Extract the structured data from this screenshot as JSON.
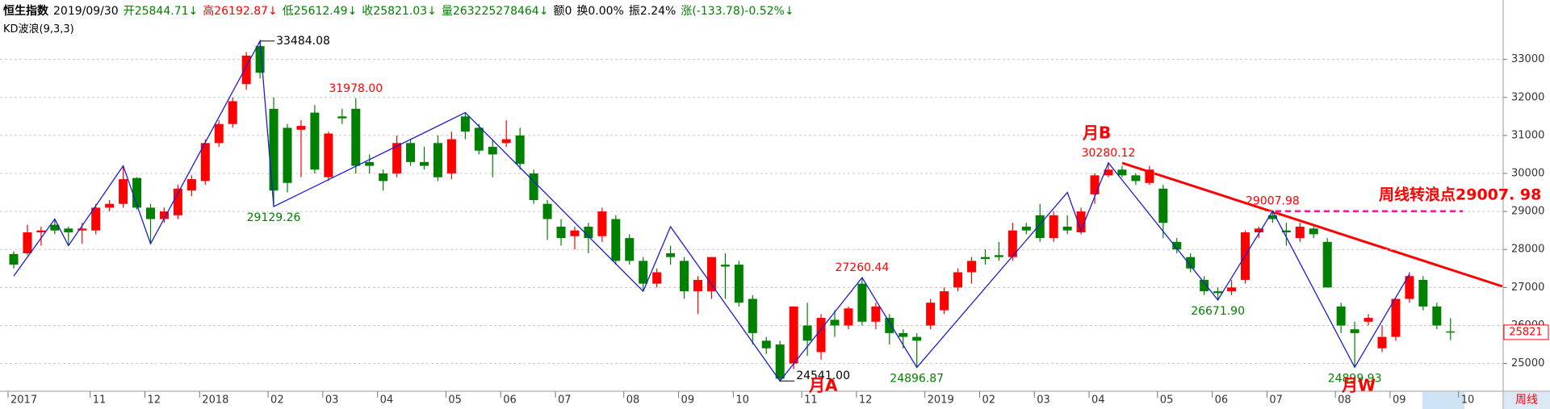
{
  "header": {
    "name": "恒生指数",
    "date": "2019/09/30",
    "items": [
      {
        "text": "开25844.71↓",
        "color": "#008000"
      },
      {
        "text": "高26192.87↓",
        "color": "#ff0000"
      },
      {
        "text": "低25612.49↓",
        "color": "#008000"
      },
      {
        "text": "收25821.03↓",
        "color": "#008000"
      },
      {
        "text": "量263225278464↓",
        "color": "#008000"
      },
      {
        "text": "额0",
        "color": "#000000"
      },
      {
        "text": "换0.00%",
        "color": "#000000"
      },
      {
        "text": "振2.24%",
        "color": "#000000"
      },
      {
        "text": "涨(-133.78)-0.52%↓",
        "color": "#008000"
      }
    ],
    "indicator": "KD波浪(9,3,3)"
  },
  "chart_data": {
    "type": "candlestick",
    "categories": [
      "2017",
      null,
      null,
      null,
      null,
      null,
      "11",
      null,
      null,
      null,
      "12",
      null,
      null,
      null,
      "2018",
      null,
      null,
      null,
      null,
      "02",
      null,
      null,
      null,
      "03",
      null,
      null,
      null,
      "04",
      null,
      null,
      null,
      null,
      "05",
      null,
      null,
      null,
      "06",
      null,
      null,
      null,
      "07",
      null,
      null,
      null,
      null,
      "08",
      null,
      null,
      null,
      "09",
      null,
      null,
      null,
      "10",
      null,
      null,
      null,
      null,
      "11",
      null,
      null,
      null,
      "12",
      null,
      null,
      null,
      null,
      "2019",
      null,
      null,
      null,
      "02",
      null,
      null,
      null,
      "03",
      null,
      null,
      null,
      "04",
      null,
      null,
      null,
      null,
      "05",
      null,
      null,
      null,
      "06",
      null,
      null,
      null,
      "07",
      null,
      null,
      null,
      null,
      "08",
      null,
      null,
      null,
      "09",
      null,
      null,
      null,
      null,
      "10"
    ],
    "open": [
      27880,
      27900,
      28450,
      28650,
      28550,
      28500,
      28500,
      29100,
      29200,
      29880,
      29100,
      28800,
      28900,
      29550,
      29800,
      30800,
      31300,
      32350,
      33350,
      31700,
      31200,
      31150,
      31600,
      29900,
      31500,
      31700,
      30300,
      30000,
      30000,
      30800,
      30300,
      30800,
      30000,
      31500,
      31200,
      30700,
      30800,
      31000,
      30000,
      29200,
      28600,
      28350,
      28600,
      28350,
      28800,
      28300,
      27700,
      27100,
      27900,
      27700,
      26900,
      26900,
      27600,
      27600,
      26700,
      25600,
      25500,
      25000,
      26000,
      25300,
      26150,
      26000,
      27100,
      26100,
      26200,
      25800,
      25700,
      26000,
      26400,
      27000,
      27400,
      27800,
      27850,
      27800,
      28600,
      28900,
      28300,
      28600,
      28450,
      29450,
      29950,
      30100,
      29950,
      29750,
      29600,
      28200,
      27800,
      27200,
      26900,
      26900,
      27200,
      28450,
      28900,
      28500,
      28300,
      28550,
      28200,
      26500,
      25900,
      26100,
      25400,
      25700,
      26700,
      27200,
      26500,
      25844.71,
      null
    ],
    "high": [
      27950,
      28650,
      28600,
      28800,
      28600,
      28700,
      29200,
      29300,
      30200,
      29900,
      29200,
      29100,
      29700,
      29950,
      30900,
      31400,
      32000,
      33200,
      33484.08,
      32000,
      31300,
      31400,
      31800,
      31100,
      31700,
      31978,
      30500,
      30100,
      31000,
      30900,
      30700,
      31000,
      31100,
      31600,
      31300,
      30900,
      31400,
      31200,
      30100,
      29300,
      28800,
      28600,
      28700,
      29100,
      28900,
      28400,
      27800,
      27500,
      28100,
      27800,
      27300,
      27800,
      27900,
      27700,
      26800,
      25700,
      25600,
      26500,
      26600,
      26300,
      26400,
      26500,
      27260.44,
      26600,
      26300,
      25900,
      25800,
      26700,
      27000,
      27500,
      27800,
      28000,
      28200,
      28700,
      28700,
      29200,
      29000,
      28900,
      29100,
      30000,
      30280.12,
      30200,
      30000,
      30200,
      29700,
      28300,
      27900,
      27300,
      27000,
      27200,
      28500,
      28600,
      29007.98,
      28700,
      28700,
      28600,
      28300,
      26600,
      26100,
      26300,
      26000,
      26700,
      27400,
      27300,
      26600,
      26192.87,
      null
    ],
    "low": [
      27500,
      27850,
      28100,
      28400,
      28100,
      28150,
      28400,
      29000,
      29100,
      29050,
      28150,
      28700,
      28800,
      29400,
      29700,
      30700,
      31200,
      32200,
      32500,
      29129.26,
      29500,
      29900,
      30000,
      29800,
      31300,
      30000,
      30000,
      29550,
      29900,
      30200,
      30100,
      29800,
      29850,
      30900,
      30500,
      29900,
      30700,
      30100,
      29200,
      28250,
      28100,
      28000,
      27900,
      28200,
      27600,
      27600,
      26900,
      27000,
      27600,
      26700,
      26300,
      26700,
      26700,
      26500,
      25500,
      25250,
      24541,
      24850,
      25200,
      25100,
      25700,
      25900,
      26000,
      25900,
      25500,
      25400,
      24896.87,
      25900,
      26300,
      26900,
      27100,
      27600,
      27700,
      27700,
      28400,
      28200,
      28200,
      28400,
      28400,
      29200,
      29900,
      29900,
      29700,
      29700,
      28300,
      27900,
      27400,
      26800,
      26671.9,
      26800,
      27100,
      28300,
      28700,
      28100,
      28200,
      28300,
      27000,
      25800,
      24899.93,
      26000,
      25300,
      25600,
      26600,
      26400,
      25900,
      25612.49,
      null
    ],
    "close": [
      27600,
      28450,
      28500,
      28500,
      28450,
      28550,
      29100,
      29200,
      29850,
      29100,
      28800,
      29000,
      29600,
      29850,
      30800,
      31300,
      31900,
      33100,
      32650,
      29550,
      29750,
      31250,
      30100,
      31050,
      31450,
      30200,
      30200,
      29800,
      30800,
      30300,
      30200,
      29900,
      30900,
      31100,
      30600,
      30500,
      30900,
      30250,
      29300,
      28800,
      28300,
      28500,
      28300,
      29000,
      27700,
      27700,
      27100,
      27400,
      27800,
      26900,
      27200,
      27800,
      27550,
      26600,
      25800,
      25400,
      24600,
      26500,
      25600,
      26200,
      26000,
      26450,
      26100,
      26500,
      25800,
      25700,
      25600,
      26600,
      26900,
      27400,
      27700,
      27750,
      27800,
      28500,
      28500,
      28300,
      28900,
      28500,
      29000,
      29950,
      30100,
      29950,
      29800,
      30100,
      28700,
      28000,
      27500,
      26900,
      26850,
      27000,
      28450,
      28550,
      28800,
      28450,
      28600,
      28400,
      27000,
      26000,
      25800,
      26200,
      25700,
      26700,
      27300,
      26500,
      26000,
      25821.03,
      null
    ],
    "up_color": "#ff0000",
    "down_color": "#008000",
    "wave": {
      "color": "#1c1cd6",
      "x": [
        0,
        3,
        4,
        8,
        10,
        18,
        19,
        33,
        46,
        48,
        56,
        62,
        66,
        77,
        78,
        80,
        88,
        92,
        98,
        102
      ],
      "values": [
        27300,
        28800,
        28100,
        30200,
        28150,
        33484.08,
        29129.26,
        31600,
        26900,
        28600,
        24541.0,
        27260.44,
        24896.87,
        29500,
        28500,
        30280.12,
        26671.9,
        29007.98,
        24899.93,
        27350
      ]
    },
    "annotations": [
      {
        "x": 18,
        "value": 33484.08,
        "label": "33484.08",
        "color": "#000000"
      },
      {
        "x": 25,
        "value": 31978.0,
        "label": "31978.00",
        "color": "#ff0000"
      },
      {
        "x": 19,
        "value": 29129.26,
        "label": "29129.26",
        "color": "#008000"
      },
      {
        "x": 62,
        "value": 27260.44,
        "label": "27260.44",
        "color": "#ff0000"
      },
      {
        "x": 56,
        "value": 24541.0,
        "label": "24541.00",
        "color": "#000000"
      },
      {
        "x": 66,
        "value": 24896.87,
        "label": "24896.87",
        "color": "#008000"
      },
      {
        "x": 80,
        "value": 30280.12,
        "label": "30280.12",
        "color": "#ff0000"
      },
      {
        "x": 88,
        "value": 26671.9,
        "label": "26671.90",
        "color": "#008000"
      },
      {
        "x": 92,
        "value": 29007.98,
        "label": "29007.98",
        "color": "#ff0000"
      },
      {
        "x": 98,
        "value": 24899.93,
        "label": "24899.93",
        "color": "#008000"
      }
    ],
    "notes": [
      "月B",
      "月A",
      "月W",
      "周线转浪点29007. 98"
    ],
    "ylim": [
      24270,
      33650
    ],
    "yticks": [
      25000,
      26000,
      27000,
      28000,
      29000,
      30000,
      31000,
      32000,
      33000
    ],
    "grid": true,
    "last": {
      "value": 25821.03,
      "label": "25821"
    },
    "period_label": "周线"
  }
}
